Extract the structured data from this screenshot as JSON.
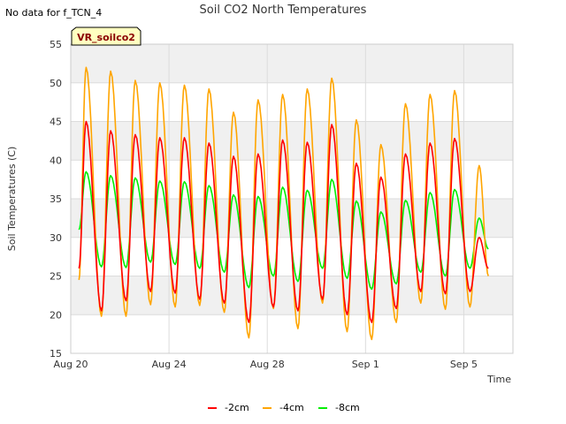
{
  "note": "No data for f_TCN_4",
  "site_label": "VR_soilco2",
  "colors": {
    "band": "#f0f0f0",
    "grid": "#dcdcdc",
    "site_fill": "#ffffc0",
    "site_border": "#000000"
  },
  "chart_data": {
    "type": "line",
    "title": "Soil CO2 North Temperatures",
    "xlabel": "Time",
    "ylabel": "Soil Temperatures (C)",
    "xlim": [
      "2023-08-20",
      "2023-09-07"
    ],
    "ylim": [
      15,
      55
    ],
    "yticks": [
      15,
      20,
      25,
      30,
      35,
      40,
      45,
      50,
      55
    ],
    "xticks": [
      {
        "label": "Aug 20",
        "value": "2023-08-20"
      },
      {
        "label": "Aug 24",
        "value": "2023-08-24"
      },
      {
        "label": "Aug 28",
        "value": "2023-08-28"
      },
      {
        "label": "Sep 1",
        "value": "2023-09-01"
      },
      {
        "label": "Sep 5",
        "value": "2023-09-05"
      }
    ],
    "grid": true,
    "legend_position": "bottom",
    "data_start": "2023-08-20T08:00",
    "data_end": "2023-09-06T00:00",
    "peak_hour": 15,
    "trough_hour": 6,
    "series": [
      {
        "name": "-2cm",
        "color": "#ff0000",
        "start_value": 26,
        "daily_max": [
          45.0,
          43.8,
          43.3,
          42.9,
          42.9,
          42.2,
          40.5,
          40.8,
          42.6,
          42.3,
          44.6,
          39.6,
          37.8,
          40.8,
          42.2,
          42.8,
          30.0
        ],
        "daily_min": [
          22.0,
          20.5,
          21.8,
          23.0,
          22.8,
          22.0,
          21.5,
          19.0,
          21.0,
          20.5,
          22.0,
          20.0,
          19.0,
          20.8,
          23.0,
          22.7,
          23.0
        ],
        "end_value": 26
      },
      {
        "name": "-4cm",
        "color": "#ffa500",
        "start_value": 24.5,
        "daily_max": [
          52.0,
          51.5,
          50.3,
          50.0,
          49.7,
          49.2,
          46.2,
          47.8,
          48.5,
          49.2,
          50.6,
          45.2,
          42.0,
          47.3,
          48.5,
          49.0,
          39.3
        ],
        "daily_min": [
          19.8,
          19.8,
          19.8,
          21.3,
          21.0,
          21.2,
          20.3,
          17.0,
          20.8,
          18.2,
          21.5,
          17.8,
          16.8,
          19.0,
          21.5,
          20.7,
          21.0
        ],
        "end_value": 25
      },
      {
        "name": "-8cm",
        "color": "#00ee00",
        "start_value": 31,
        "daily_max": [
          38.5,
          38.0,
          37.7,
          37.3,
          37.2,
          36.7,
          35.5,
          35.3,
          36.5,
          36.1,
          37.5,
          34.7,
          33.3,
          34.8,
          35.8,
          36.2,
          32.5
        ],
        "daily_min": [
          26.5,
          26.2,
          26.1,
          26.8,
          26.5,
          26.0,
          25.5,
          23.5,
          25.0,
          24.3,
          26.0,
          24.7,
          23.3,
          24.0,
          25.5,
          25.0,
          26.0
        ],
        "end_value": 28.5
      }
    ]
  }
}
